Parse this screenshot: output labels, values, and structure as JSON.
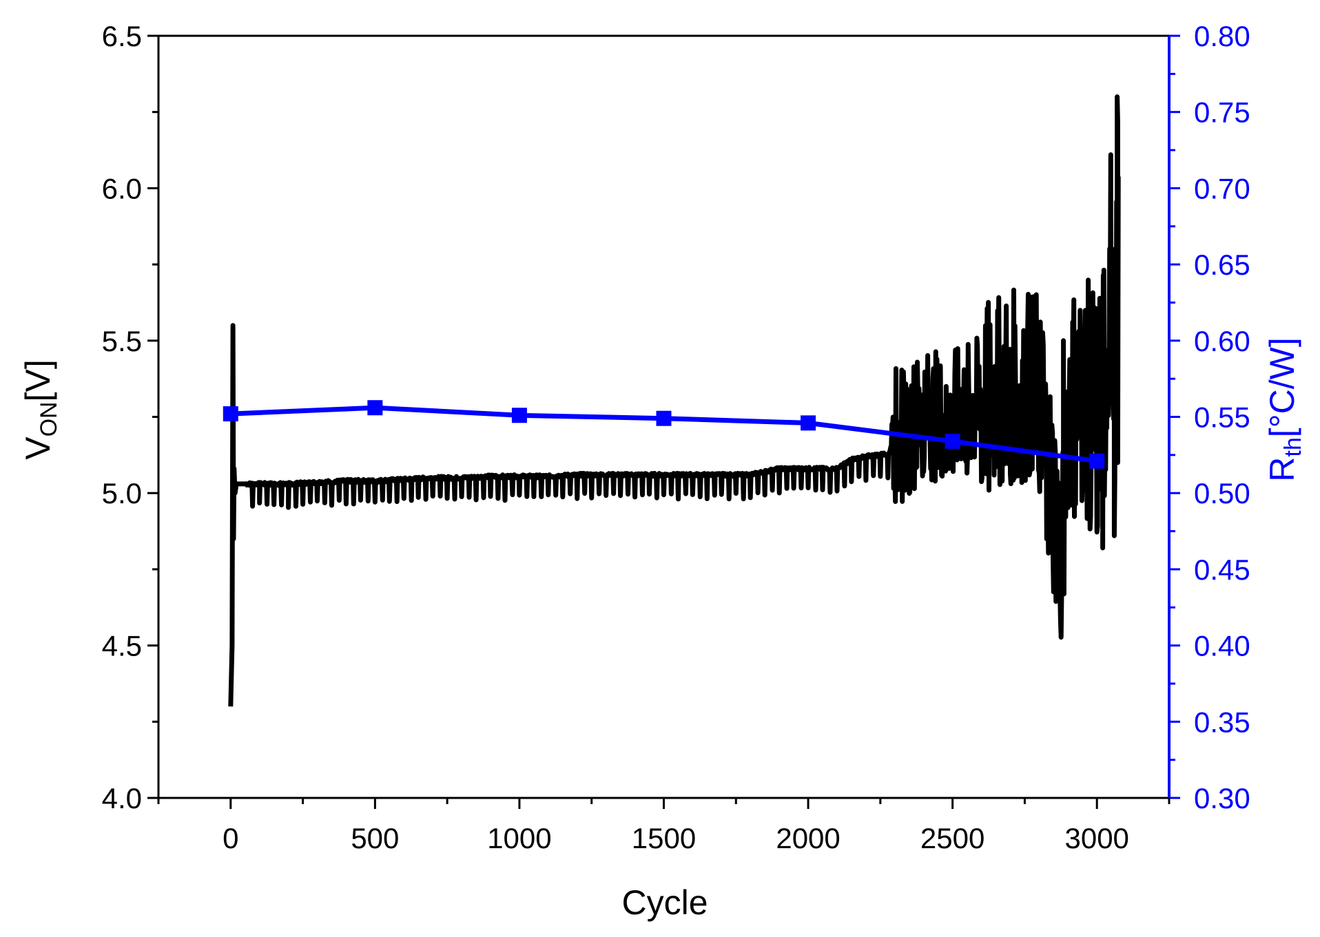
{
  "chart_data": {
    "type": "line",
    "x_axis": {
      "label": "Cycle",
      "min": -250,
      "max": 3250,
      "ticks": [
        0,
        500,
        1000,
        1500,
        2000,
        2500,
        3000
      ],
      "tick_labels": [
        "0",
        "500",
        "1000",
        "1500",
        "2000",
        "2500",
        "3000"
      ],
      "minor_step": 250
    },
    "y_left": {
      "label_main": "V",
      "label_sub": "ON",
      "label_unit": "[V]",
      "min": 4.0,
      "max": 6.5,
      "ticks": [
        4.0,
        4.5,
        5.0,
        5.5,
        6.0,
        6.5
      ],
      "tick_labels": [
        "4.0",
        "4.5",
        "5.0",
        "5.5",
        "6.0",
        "6.5"
      ],
      "color": "#000000"
    },
    "y_right": {
      "label_main": "R",
      "label_sub": "th",
      "label_unit": "[°C/W]",
      "min": 0.3,
      "max": 0.8,
      "ticks": [
        0.3,
        0.35,
        0.4,
        0.45,
        0.5,
        0.55,
        0.6,
        0.65,
        0.7,
        0.75,
        0.8
      ],
      "tick_labels": [
        "0.30",
        "0.35",
        "0.40",
        "0.45",
        "0.50",
        "0.55",
        "0.60",
        "0.65",
        "0.70",
        "0.75",
        "0.80"
      ],
      "color": "#0000ff"
    },
    "grid": false,
    "series": [
      {
        "axis": "left",
        "color": "#000000",
        "marker": "none",
        "description_points": {
          "x": [
            0,
            5,
            8,
            10,
            12,
            15,
            20,
            30,
            40,
            50,
            100,
            200,
            300,
            400,
            500,
            600,
            700,
            800,
            900,
            1000,
            1100,
            1200,
            1300,
            1400,
            1500,
            1600,
            1700,
            1800,
            1900,
            2000,
            2100,
            2150,
            2200,
            2280,
            2300,
            2400,
            2500,
            2600,
            2700,
            2800,
            2880,
            2900,
            2950,
            3000,
            3030,
            3050,
            3060,
            3075
          ],
          "y": [
            4.3,
            4.5,
            5.55,
            4.85,
            5.08,
            5.0,
            5.03,
            5.03,
            5.03,
            5.03,
            5.03,
            5.03,
            5.035,
            5.04,
            5.04,
            5.045,
            5.05,
            5.05,
            5.055,
            5.055,
            5.055,
            5.06,
            5.06,
            5.06,
            5.06,
            5.06,
            5.06,
            5.06,
            5.08,
            5.08,
            5.08,
            5.11,
            5.12,
            5.13,
            5.2,
            5.25,
            5.25,
            5.3,
            5.35,
            5.35,
            4.78,
            5.3,
            5.3,
            5.3,
            5.4,
            5.8,
            4.85,
            6.3
          ]
        }
      },
      {
        "axis": "right",
        "color": "#0000ff",
        "marker": "square",
        "x": [
          0,
          500,
          1000,
          1500,
          2000,
          2500,
          3000
        ],
        "y": [
          0.552,
          0.556,
          0.551,
          0.549,
          0.546,
          0.534,
          0.521
        ]
      }
    ]
  }
}
